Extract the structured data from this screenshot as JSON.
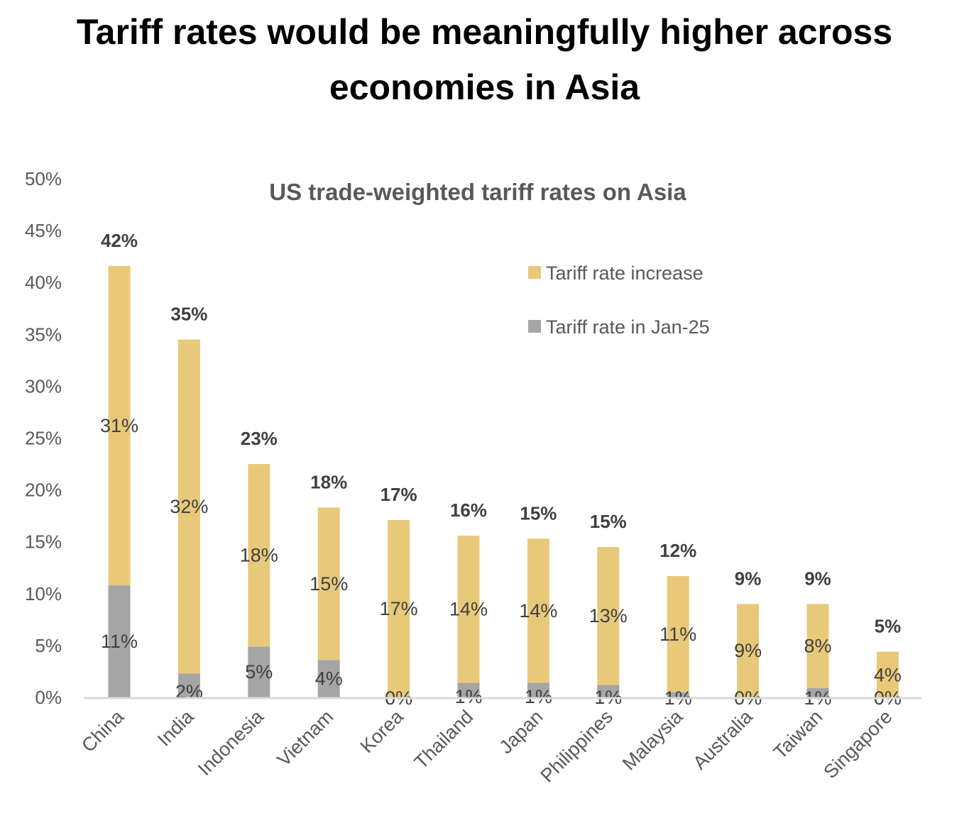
{
  "title_lines": [
    "Tariff rates would be meaningfully higher across",
    "economies in Asia"
  ],
  "chart_data": {
    "type": "bar",
    "stacked": true,
    "title": "US trade-weighted tariff rates on Asia",
    "xlabel": "",
    "ylabel": "",
    "ylim": [
      0,
      50
    ],
    "yticks": [
      "0%",
      "5%",
      "10%",
      "15%",
      "20%",
      "25%",
      "30%",
      "35%",
      "40%",
      "45%",
      "50%"
    ],
    "grid": false,
    "legend_position": "upper-right",
    "colors": {
      "Tariff rate increase": "#E8C97A",
      "Tariff rate in Jan-25": "#A5A5A5"
    },
    "categories": [
      "China",
      "India",
      "Indonesia",
      "Vietnam",
      "Korea",
      "Thailand",
      "Japan",
      "Philippines",
      "Malaysia",
      "Australia",
      "Taiwan",
      "Singapore"
    ],
    "series": [
      {
        "name": "Tariff rate in Jan-25",
        "values": [
          10.8,
          2.3,
          4.9,
          3.6,
          0.0,
          1.4,
          1.4,
          1.2,
          0.5,
          0.0,
          0.9,
          0.0
        ],
        "labels": [
          "11%",
          "2%",
          "5%",
          "4%",
          "0%",
          "1%",
          "1%",
          "1%",
          "1%",
          "0%",
          "1%",
          "0%"
        ]
      },
      {
        "name": "Tariff rate increase",
        "values": [
          30.8,
          32.2,
          17.6,
          14.7,
          17.1,
          14.2,
          13.9,
          13.3,
          11.2,
          9.0,
          8.1,
          4.4
        ],
        "labels": [
          "31%",
          "32%",
          "18%",
          "15%",
          "17%",
          "14%",
          "14%",
          "13%",
          "11%",
          "9%",
          "8%",
          "4%"
        ]
      }
    ],
    "totals": [
      "42%",
      "35%",
      "23%",
      "18%",
      "17%",
      "16%",
      "15%",
      "15%",
      "12%",
      "9%",
      "9%",
      "5%"
    ]
  }
}
